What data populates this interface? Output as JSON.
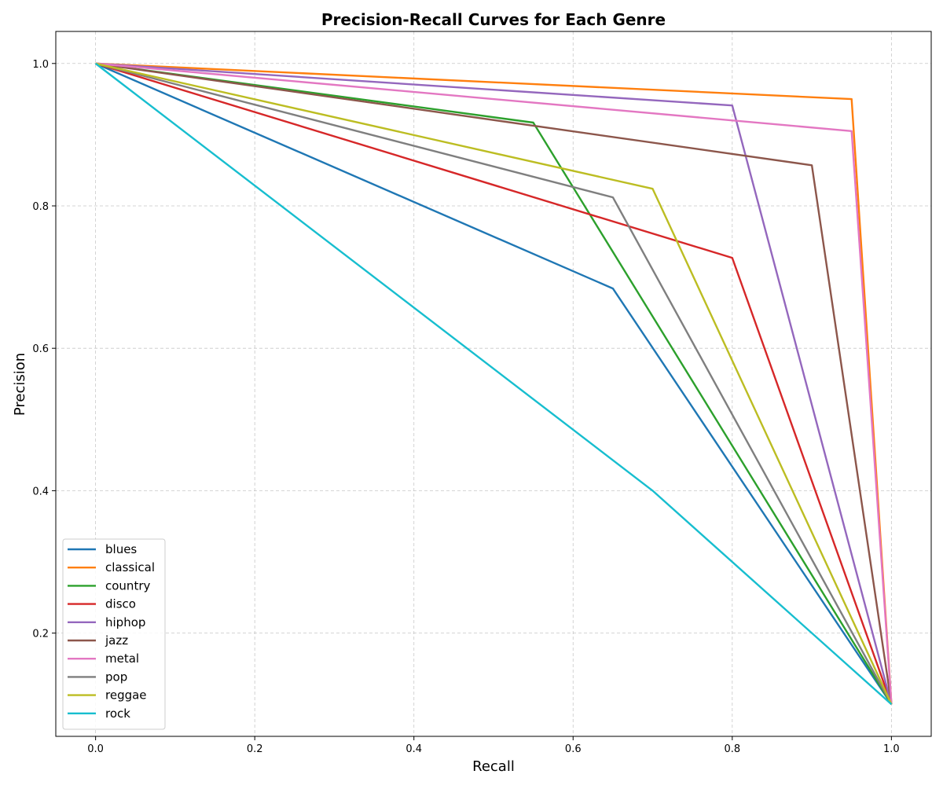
{
  "chart_data": {
    "type": "line",
    "title": "Precision-Recall Curves for Each Genre",
    "xlabel": "Recall",
    "ylabel": "Precision",
    "xlim": [
      -0.05,
      1.05
    ],
    "ylim": [
      0.055,
      1.045
    ],
    "xticks": [
      0.0,
      0.2,
      0.4,
      0.6,
      0.8,
      1.0
    ],
    "xtick_labels": [
      "0.0",
      "0.2",
      "0.4",
      "0.6",
      "0.8",
      "1.0"
    ],
    "yticks": [
      0.2,
      0.4,
      0.6,
      0.8,
      1.0
    ],
    "ytick_labels": [
      "0.2",
      "0.4",
      "0.6",
      "0.8",
      "1.0"
    ],
    "grid": true,
    "legend_position": "lower-left",
    "series": [
      {
        "name": "blues",
        "color": "#1f77b4",
        "points": [
          [
            0.0,
            1.0
          ],
          [
            0.65,
            0.684
          ],
          [
            1.0,
            0.1
          ]
        ]
      },
      {
        "name": "classical",
        "color": "#ff7f0e",
        "points": [
          [
            0.0,
            1.0
          ],
          [
            0.95,
            0.95
          ],
          [
            1.0,
            0.1
          ]
        ]
      },
      {
        "name": "country",
        "color": "#2ca02c",
        "points": [
          [
            0.0,
            1.0
          ],
          [
            0.55,
            0.917
          ],
          [
            1.0,
            0.1
          ]
        ]
      },
      {
        "name": "disco",
        "color": "#d62728",
        "points": [
          [
            0.0,
            1.0
          ],
          [
            0.8,
            0.727
          ],
          [
            1.0,
            0.1
          ]
        ]
      },
      {
        "name": "hiphop",
        "color": "#9467bd",
        "points": [
          [
            0.0,
            1.0
          ],
          [
            0.8,
            0.941
          ],
          [
            1.0,
            0.1
          ]
        ]
      },
      {
        "name": "jazz",
        "color": "#8c564b",
        "points": [
          [
            0.0,
            1.0
          ],
          [
            0.9,
            0.857
          ],
          [
            1.0,
            0.1
          ]
        ]
      },
      {
        "name": "metal",
        "color": "#e377c2",
        "points": [
          [
            0.0,
            1.0
          ],
          [
            0.95,
            0.905
          ],
          [
            1.0,
            0.1
          ]
        ]
      },
      {
        "name": "pop",
        "color": "#7f7f7f",
        "points": [
          [
            0.0,
            1.0
          ],
          [
            0.65,
            0.812
          ],
          [
            1.0,
            0.1
          ]
        ]
      },
      {
        "name": "reggae",
        "color": "#bcbd22",
        "points": [
          [
            0.0,
            1.0
          ],
          [
            0.7,
            0.824
          ],
          [
            1.0,
            0.1
          ]
        ]
      },
      {
        "name": "rock",
        "color": "#17becf",
        "points": [
          [
            0.0,
            1.0
          ],
          [
            0.7,
            0.4
          ],
          [
            1.0,
            0.1
          ]
        ]
      }
    ]
  }
}
